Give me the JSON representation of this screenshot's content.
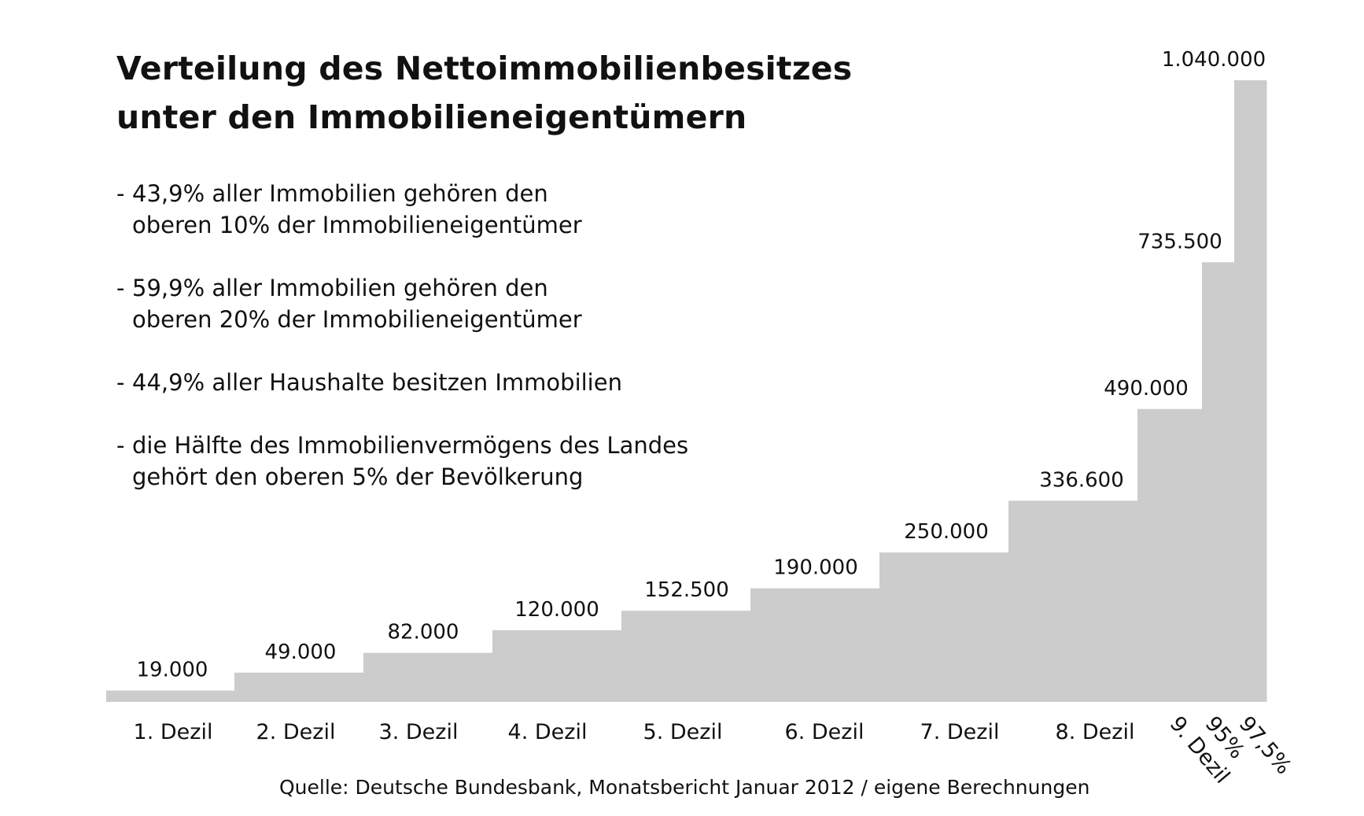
{
  "title_lines": [
    "Verteilung des Nettoimmobilienbesitzes",
    "unter den Immobilieneigentümern"
  ],
  "notes": [
    {
      "line1": "43,9% aller Immobilien gehören den",
      "line2": "oberen 10% der Immobilieneigentümer"
    },
    {
      "line1": "59,9% aller Immobilien gehören den",
      "line2": "oberen 20% der Immobilieneigentümer"
    },
    {
      "line1": "44,9% aller Haushalte besitzen Immobilien",
      "line2": ""
    },
    {
      "line1": "die Hälfte des Immobilienvermögens des Landes",
      "line2": "gehört den oberen 5% der Bevölkerung"
    }
  ],
  "source": "Quelle: Deutsche Bundesbank, Monatsbericht Januar 2012 / eigene Berechnungen",
  "colors": {
    "bar": "#cccccc",
    "text": "#111111",
    "background": "#ffffff"
  },
  "chart_data": {
    "type": "bar",
    "title": "Verteilung des Nettoimmobilienbesitzes unter den Immobilieneigentümern",
    "xlabel": "",
    "ylabel": "",
    "ylim": [
      0,
      1040000
    ],
    "grid": false,
    "categories": [
      "1. Dezil",
      "2. Dezil",
      "3. Dezil",
      "4. Dezil",
      "5. Dezil",
      "6. Dezil",
      "7. Dezil",
      "8. Dezil",
      "9. Dezil",
      "95%",
      "97,5%"
    ],
    "values": [
      19000,
      49000,
      82000,
      120000,
      152500,
      190000,
      250000,
      336600,
      490000,
      735500,
      1040000
    ],
    "value_labels": [
      "19.000",
      "49.000",
      "82.000",
      "120.000",
      "152.500",
      "190.000",
      "250.000",
      "336.600",
      "490.000",
      "735.500",
      "1.040.000"
    ]
  }
}
